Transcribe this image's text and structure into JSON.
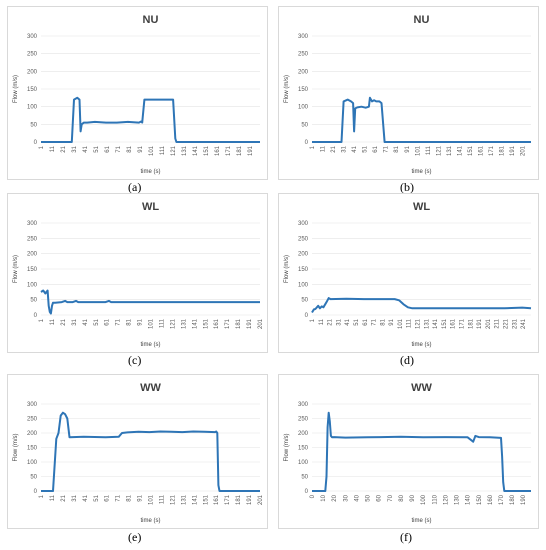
{
  "colors": {
    "series": "#2e75b6",
    "frame": "#d9d9d9",
    "grid": "#e3e3e3"
  },
  "chart_data": [
    {
      "type": "line",
      "panel_label": "(a)",
      "title": "NU",
      "xlabel": "time (s)",
      "ylabel": "Flow (m/s)",
      "ylim": [
        0,
        300
      ],
      "yticks": [
        0,
        50,
        100,
        150,
        200,
        250,
        300
      ],
      "xrange": [
        1,
        200
      ],
      "xticks": [
        "1",
        "11",
        "21",
        "31",
        "41",
        "51",
        "61",
        "71",
        "81",
        "91",
        "101",
        "111",
        "121",
        "131",
        "141",
        "151",
        "161",
        "171",
        "181",
        "191"
      ],
      "grid": true,
      "legend": "none",
      "series": [
        {
          "x": [
            1,
            29,
            31,
            34,
            36,
            37,
            38,
            40,
            43,
            50,
            60,
            70,
            80,
            90,
            92,
            93,
            95,
            100,
            110,
            120,
            121,
            123,
            124,
            200
          ],
          "y": [
            0,
            0,
            120,
            125,
            120,
            30,
            50,
            55,
            55,
            57,
            55,
            55,
            57,
            55,
            58,
            55,
            120,
            120,
            120,
            120,
            120,
            10,
            0,
            0
          ]
        }
      ]
    },
    {
      "type": "line",
      "panel_label": "(b)",
      "title": "NU",
      "xlabel": "time (s)",
      "ylabel": "Flow (m/s)",
      "ylim": [
        0,
        300
      ],
      "yticks": [
        0,
        50,
        100,
        150,
        200,
        250,
        300
      ],
      "xrange": [
        1,
        209
      ],
      "xticks": [
        "1",
        "11",
        "21",
        "31",
        "41",
        "51",
        "61",
        "71",
        "81",
        "91",
        "101",
        "111",
        "121",
        "131",
        "141",
        "151",
        "161",
        "171",
        "181",
        "191",
        "201"
      ],
      "grid": true,
      "legend": "none",
      "series": [
        {
          "x": [
            1,
            29,
            31,
            35,
            38,
            40,
            41,
            42,
            44,
            48,
            52,
            55,
            56,
            58,
            60,
            62,
            65,
            67,
            70,
            209
          ],
          "y": [
            0,
            0,
            115,
            120,
            115,
            110,
            30,
            95,
            98,
            100,
            97,
            100,
            125,
            115,
            118,
            115,
            115,
            110,
            0,
            0
          ]
        }
      ]
    },
    {
      "type": "line",
      "panel_label": "(c)",
      "title": "WL",
      "xlabel": "time (s)",
      "ylabel": "Flow (m/s)",
      "ylim": [
        0,
        300
      ],
      "yticks": [
        0,
        50,
        100,
        150,
        200,
        250,
        300
      ],
      "xrange": [
        1,
        201
      ],
      "xticks": [
        "1",
        "11",
        "21",
        "31",
        "41",
        "51",
        "61",
        "71",
        "81",
        "91",
        "101",
        "111",
        "121",
        "131",
        "141",
        "151",
        "161",
        "171",
        "181",
        "191",
        "201"
      ],
      "grid": true,
      "legend": "none",
      "series": [
        {
          "x": [
            1,
            3,
            5,
            7,
            8,
            9,
            10,
            11,
            12,
            14,
            20,
            23,
            25,
            30,
            33,
            35,
            60,
            63,
            65,
            70,
            100,
            110,
            120,
            130,
            140,
            150,
            160,
            170,
            180,
            190,
            201
          ],
          "y": [
            75,
            80,
            70,
            80,
            30,
            10,
            5,
            30,
            40,
            40,
            42,
            46,
            42,
            42,
            46,
            42,
            42,
            46,
            42,
            42,
            42,
            42,
            42,
            42,
            42,
            42,
            42,
            42,
            42,
            42,
            42
          ]
        }
      ]
    },
    {
      "type": "line",
      "panel_label": "(d)",
      "title": "WL",
      "xlabel": "time (s)",
      "ylabel": "Flow (m/s)",
      "ylim": [
        0,
        300
      ],
      "yticks": [
        0,
        50,
        100,
        150,
        200,
        250,
        300
      ],
      "xrange": [
        1,
        250
      ],
      "xticks": [
        "1",
        "11",
        "21",
        "31",
        "41",
        "51",
        "61",
        "71",
        "81",
        "91",
        "101",
        "111",
        "121",
        "131",
        "141",
        "151",
        "161",
        "171",
        "181",
        "191",
        "201",
        "211",
        "221",
        "231",
        "241"
      ],
      "grid": true,
      "legend": "none",
      "series": [
        {
          "x": [
            1,
            3,
            5,
            8,
            10,
            12,
            14,
            16,
            18,
            20,
            22,
            40,
            60,
            80,
            95,
            100,
            105,
            110,
            115,
            150,
            180,
            200,
            220,
            240,
            250
          ],
          "y": [
            8,
            18,
            20,
            30,
            22,
            28,
            25,
            35,
            45,
            55,
            52,
            53,
            52,
            52,
            52,
            48,
            35,
            25,
            22,
            22,
            22,
            22,
            22,
            24,
            22
          ]
        }
      ]
    },
    {
      "type": "line",
      "panel_label": "(e)",
      "title": "WW",
      "xlabel": "time (s)",
      "ylabel": "Flow (m/s)",
      "ylim": [
        0,
        300
      ],
      "yticks": [
        0,
        50,
        100,
        150,
        200,
        250,
        300
      ],
      "xrange": [
        1,
        201
      ],
      "xticks": [
        "1",
        "11",
        "21",
        "31",
        "41",
        "51",
        "61",
        "71",
        "81",
        "91",
        "101",
        "111",
        "121",
        "131",
        "141",
        "151",
        "161",
        "171",
        "181",
        "191",
        "201"
      ],
      "grid": true,
      "legend": "none",
      "series": [
        {
          "x": [
            1,
            12,
            15,
            17,
            19,
            21,
            23,
            25,
            27,
            40,
            60,
            72,
            75,
            80,
            90,
            100,
            110,
            120,
            130,
            140,
            150,
            160,
            161,
            162,
            163,
            164,
            201
          ],
          "y": [
            0,
            0,
            180,
            200,
            260,
            270,
            265,
            250,
            185,
            187,
            185,
            187,
            200,
            202,
            204,
            203,
            205,
            204,
            203,
            205,
            204,
            203,
            205,
            200,
            20,
            0,
            0
          ]
        }
      ]
    },
    {
      "type": "line",
      "panel_label": "(f)",
      "title": "WW",
      "xlabel": "time (s)",
      "ylabel": "Flow (m/s)",
      "ylim": [
        0,
        300
      ],
      "yticks": [
        0,
        50,
        100,
        150,
        200,
        250,
        300
      ],
      "xrange": [
        0,
        197
      ],
      "xticks": [
        "0",
        "10",
        "20",
        "30",
        "40",
        "50",
        "60",
        "70",
        "80",
        "90",
        "100",
        "110",
        "120",
        "130",
        "140",
        "150",
        "160",
        "170",
        "180",
        "190"
      ],
      "grid": true,
      "legend": "none",
      "series": [
        {
          "x": [
            0,
            12,
            13,
            14,
            15,
            16,
            17,
            18,
            20,
            30,
            50,
            80,
            100,
            120,
            140,
            145,
            147,
            150,
            160,
            170,
            171,
            172,
            173,
            197
          ],
          "y": [
            0,
            0,
            50,
            220,
            270,
            240,
            190,
            185,
            186,
            184,
            185,
            187,
            185,
            186,
            185,
            170,
            190,
            186,
            185,
            183,
            120,
            30,
            0,
            0
          ]
        }
      ]
    }
  ]
}
